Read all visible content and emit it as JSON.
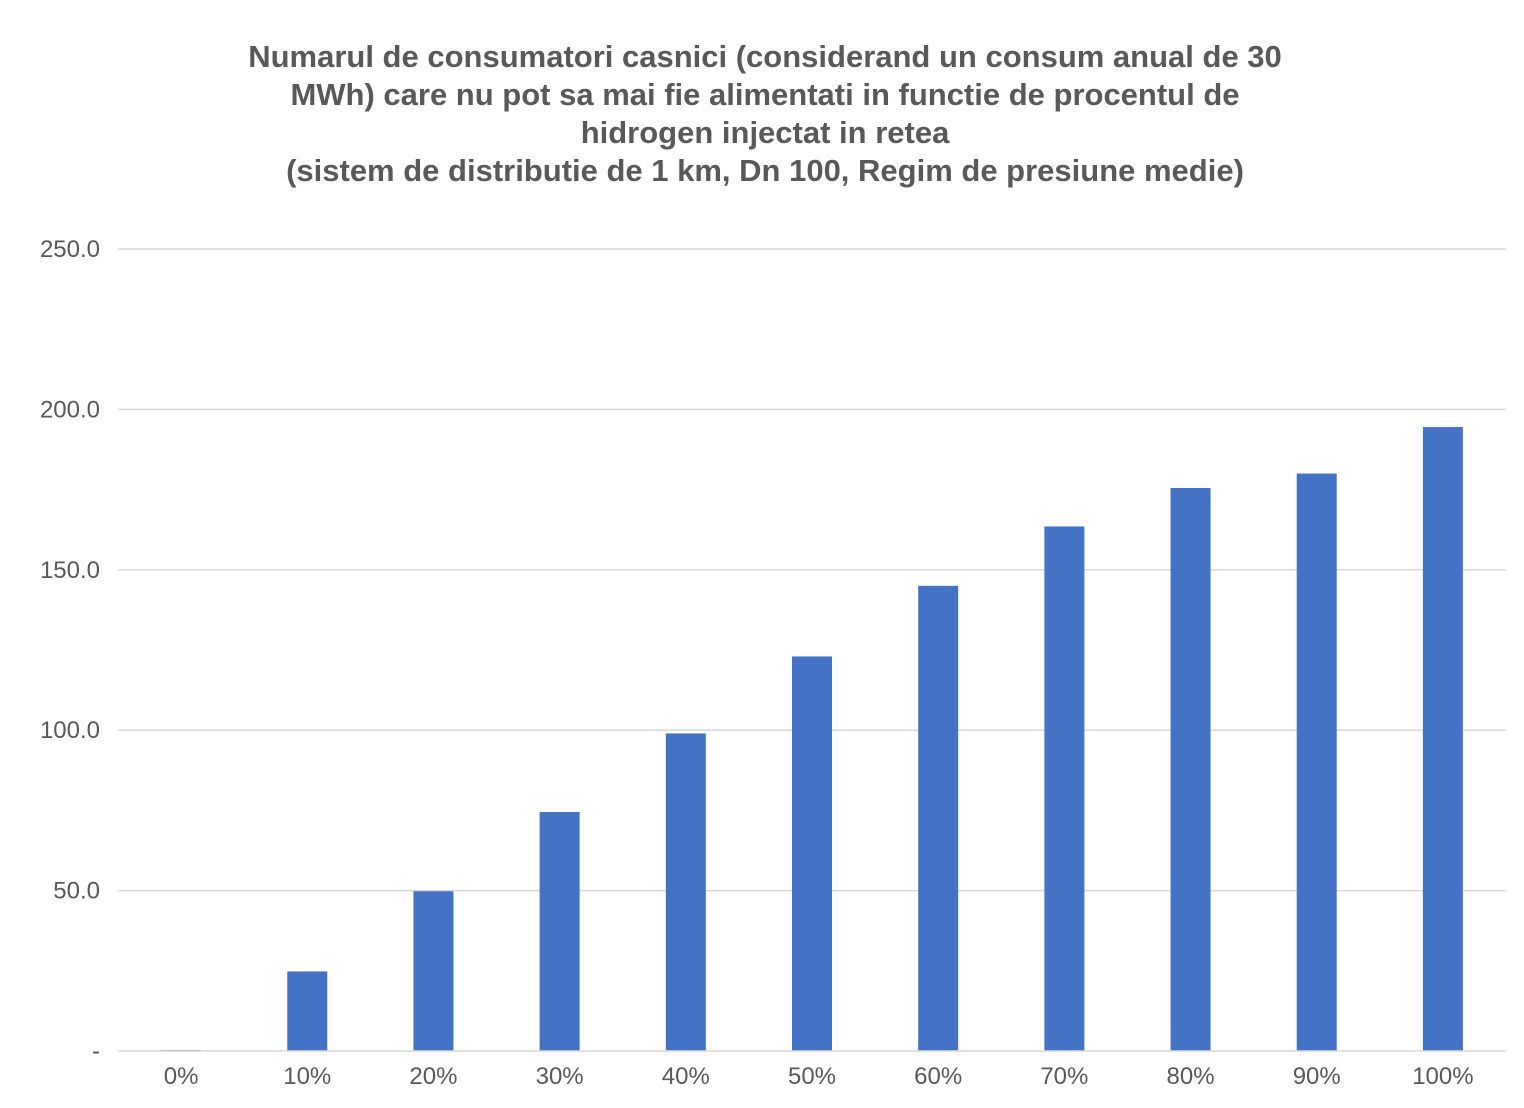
{
  "chart_data": {
    "type": "bar",
    "title_lines": [
      "Numarul de consumatori casnici (considerand un consum anual de 30",
      "MWh) care nu pot sa mai fie alimentati in functie de procentul de",
      "hidrogen injectat in retea",
      "(sistem de distributie de 1 km, Dn 100, Regim de presiune medie)"
    ],
    "categories": [
      "0%",
      "10%",
      "20%",
      "30%",
      "40%",
      "50%",
      "60%",
      "70%",
      "80%",
      "90%",
      "100%"
    ],
    "values": [
      0.3,
      24.8,
      49.8,
      74.5,
      99.0,
      123.0,
      145.0,
      163.5,
      175.5,
      180.0,
      194.5
    ],
    "y_ticks": [
      0,
      50,
      100,
      150,
      200,
      250
    ],
    "y_tick_labels": [
      "-",
      "50.0",
      "100.0",
      "150.0",
      "200.0",
      "250.0"
    ],
    "ylim": [
      0,
      250
    ],
    "xlabel": "",
    "ylabel": "",
    "grid": true,
    "legend": "none",
    "bar_color": "#4472c4"
  }
}
